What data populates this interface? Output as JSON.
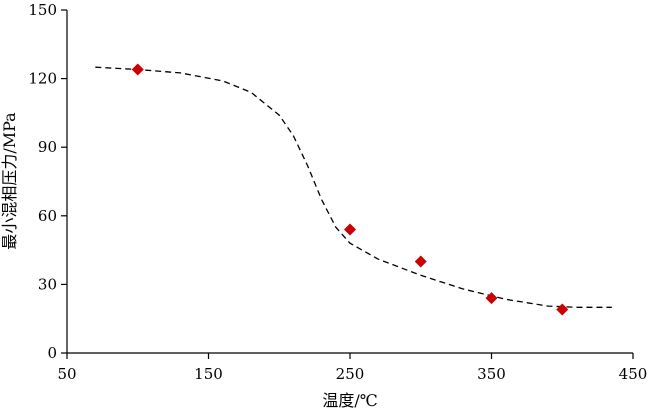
{
  "chart_data": {
    "type": "scatter",
    "xlabel": "温度/℃",
    "ylabel": "最小混相压力/MPa",
    "xlim": [
      50,
      450
    ],
    "ylim": [
      0,
      150
    ],
    "x_ticks": [
      50,
      150,
      250,
      350,
      450
    ],
    "y_ticks": [
      0,
      30,
      60,
      90,
      120,
      150
    ],
    "grid": false,
    "series": [
      {
        "kind": "points",
        "marker": "diamond",
        "color": "#cc0000",
        "x": [
          100,
          250,
          300,
          350,
          400
        ],
        "y": [
          124,
          54,
          40,
          24,
          19
        ]
      },
      {
        "kind": "dashed-line",
        "color": "#000000",
        "x": [
          70,
          100,
          130,
          160,
          180,
          200,
          210,
          220,
          230,
          240,
          250,
          270,
          300,
          330,
          360,
          390,
          410,
          435
        ],
        "y": [
          125,
          124,
          122.5,
          119,
          114,
          104,
          95,
          82,
          67,
          55,
          48,
          41,
          34,
          28,
          23.5,
          20.5,
          20,
          20
        ]
      }
    ]
  }
}
